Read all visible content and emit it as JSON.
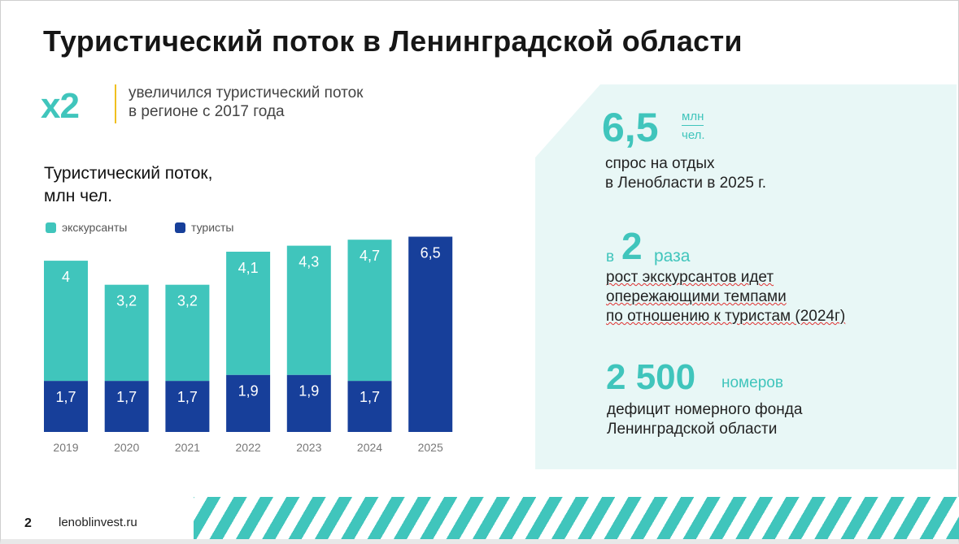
{
  "title": "Туристический поток в Ленинградской области",
  "highlight": {
    "value": "x2",
    "text_line1": "увеличился туристический поток",
    "text_line2": "в регионе с 2017 года"
  },
  "colors": {
    "teal": "#40c5bc",
    "navy": "#173f9a",
    "accent_line": "#f0c020",
    "panel": "#e8f7f6"
  },
  "chart_data": {
    "type": "bar",
    "stacked": true,
    "title_line1": "Туристический поток,",
    "title_line2": "млн чел.",
    "categories": [
      "2019",
      "2020",
      "2021",
      "2022",
      "2023",
      "2024",
      "2025"
    ],
    "series": [
      {
        "name": "туристы",
        "color": "#173f9a",
        "values": [
          1.7,
          1.7,
          1.7,
          1.9,
          1.9,
          1.7,
          6.5
        ],
        "labels": [
          "1,7",
          "1,7",
          "1,7",
          "1,9",
          "1,9",
          "1,7",
          "6,5"
        ]
      },
      {
        "name": "экскурсанты",
        "color": "#40c5bc",
        "values": [
          4,
          3.2,
          3.2,
          4.1,
          4.3,
          4.7,
          0
        ],
        "labels": [
          "4",
          "3,2",
          "3,2",
          "4,1",
          "4,3",
          "4,7",
          ""
        ]
      }
    ],
    "legend_position": "top-left",
    "grid": false
  },
  "stats": [
    {
      "value": "6,5",
      "unit_top": "млн",
      "unit_bottom": "чел.",
      "line1": "спрос на отдых",
      "line2": "в Ленобласти в 2025 г."
    },
    {
      "prefix": "в",
      "value": "2",
      "suffix": "раза",
      "line1": "рост экскурсантов идет",
      "line2": "опережающими темпами",
      "line3": "по отношению к туристам (2024г)"
    },
    {
      "value": "2 500",
      "suffix": "номеров",
      "line1": "дефицит номерного фонда",
      "line2": "Ленинградской области"
    }
  ],
  "footer": {
    "page": "2",
    "site": "lenoblinvest.ru"
  }
}
